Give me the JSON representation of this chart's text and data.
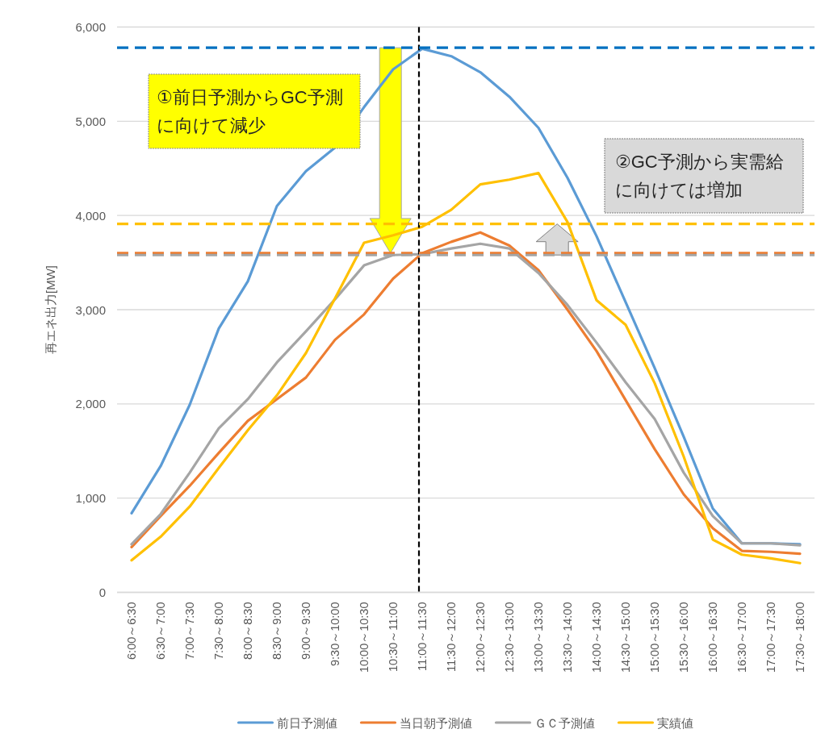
{
  "chart_data": {
    "type": "line",
    "ylabel": "再エネ出力[MW]",
    "categories": [
      "6:00～6:30",
      "6:30～7:00",
      "7:00～7:30",
      "7:30～8:00",
      "8:00～8:30",
      "8:30～9:00",
      "9:00～9:30",
      "9:30～10:00",
      "10:00～10:30",
      "10:30～11:00",
      "11:00～11:30",
      "11:30～12:00",
      "12:00～12:30",
      "12:30～13:00",
      "13:00～13:30",
      "13:30～14:00",
      "14:00～14:30",
      "14:30～15:00",
      "15:00～15:30",
      "15:30～16:00",
      "16:00～16:30",
      "16:30～17:00",
      "17:00～17:30",
      "17:30～18:00"
    ],
    "series": [
      {
        "name": "前日予測値",
        "color": "#5b9bd5",
        "values": [
          840,
          1340,
          1990,
          2800,
          3300,
          4100,
          4470,
          4720,
          5150,
          5550,
          5770,
          5690,
          5520,
          5260,
          4930,
          4400,
          3780,
          3080,
          2380,
          1650,
          890,
          520,
          520,
          510
        ]
      },
      {
        "name": "当日朝予測値",
        "color": "#ed7d31",
        "values": [
          480,
          810,
          1130,
          1480,
          1820,
          2050,
          2280,
          2680,
          2950,
          3330,
          3600,
          3720,
          3820,
          3680,
          3420,
          3000,
          2560,
          2040,
          1520,
          1040,
          680,
          440,
          430,
          410
        ]
      },
      {
        "name": "ＧＣ予測値",
        "color": "#a5a5a5",
        "values": [
          510,
          830,
          1270,
          1740,
          2050,
          2440,
          2770,
          3110,
          3470,
          3580,
          3590,
          3650,
          3700,
          3650,
          3390,
          3050,
          2650,
          2230,
          1840,
          1270,
          810,
          520,
          520,
          500
        ]
      },
      {
        "name": "実績値",
        "color": "#ffc000",
        "values": [
          340,
          590,
          910,
          1320,
          1720,
          2090,
          2540,
          3120,
          3710,
          3790,
          3880,
          4060,
          4330,
          4380,
          4450,
          3930,
          3100,
          2840,
          2220,
          1440,
          560,
          400,
          360,
          310
        ]
      }
    ],
    "ylim": [
      0,
      6000
    ],
    "yticks": [
      0,
      {
        "value": 1000,
        "label": "1,000"
      },
      {
        "value": 2000,
        "label": "2,000"
      },
      {
        "value": 3000,
        "label": "3,000"
      },
      {
        "value": 4000,
        "label": "4,000"
      },
      {
        "value": 5000,
        "label": "5,000"
      },
      {
        "value": 6000,
        "label": "6,000"
      }
    ],
    "grid": "y",
    "legend": "bottom",
    "ref_lines": [
      {
        "axis": "x",
        "value": "11:00～11:30",
        "color": "#000000",
        "line_style": "dashed"
      },
      {
        "axis": "y",
        "value": 5780,
        "color": "#0070c0",
        "line_style": "dashed"
      },
      {
        "axis": "y",
        "value": 3910,
        "color": "#ffc000",
        "line_style": "dashed"
      },
      {
        "axis": "y",
        "value": 3600,
        "color": "#ed7d31",
        "line_style": "dashed"
      },
      {
        "axis": "y",
        "value": 3580,
        "color": "#a5a5a5",
        "line_style": "dashed"
      }
    ],
    "annotations": [
      "①前日予測からGC予測に向けて減少",
      "②GC予測から実需給に向けては増加"
    ]
  }
}
